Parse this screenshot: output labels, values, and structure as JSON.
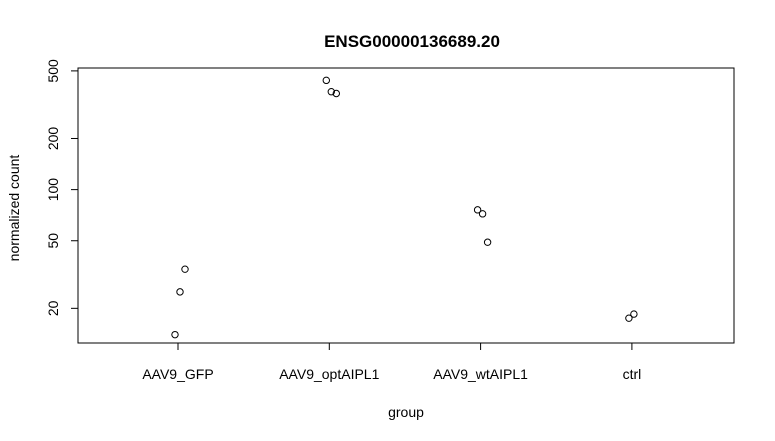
{
  "chart_data": {
    "type": "scatter",
    "title": "ENSG00000136689.20",
    "xlabel": "group",
    "ylabel": "normalized count",
    "y_scale": "log",
    "ylim": [
      12.5,
      520
    ],
    "y_ticks": [
      20,
      50,
      100,
      200,
      500
    ],
    "y_tick_labels": [
      "20",
      "50",
      "100",
      "200",
      "500"
    ],
    "categories": [
      "AAV9_GFP",
      "AAV9_optAIPL1",
      "AAV9_wtAIPL1",
      "ctrl"
    ],
    "grid": false,
    "legend": "none",
    "points": [
      {
        "group": "AAV9_GFP",
        "y": 14
      },
      {
        "group": "AAV9_GFP",
        "y": 25
      },
      {
        "group": "AAV9_GFP",
        "y": 34
      },
      {
        "group": "AAV9_optAIPL1",
        "y": 440
      },
      {
        "group": "AAV9_optAIPL1",
        "y": 377
      },
      {
        "group": "AAV9_optAIPL1",
        "y": 368
      },
      {
        "group": "AAV9_wtAIPL1",
        "y": 76
      },
      {
        "group": "AAV9_wtAIPL1",
        "y": 72
      },
      {
        "group": "AAV9_wtAIPL1",
        "y": 49
      },
      {
        "group": "ctrl",
        "y": 17.5
      },
      {
        "group": "ctrl",
        "y": 18.5
      }
    ]
  }
}
